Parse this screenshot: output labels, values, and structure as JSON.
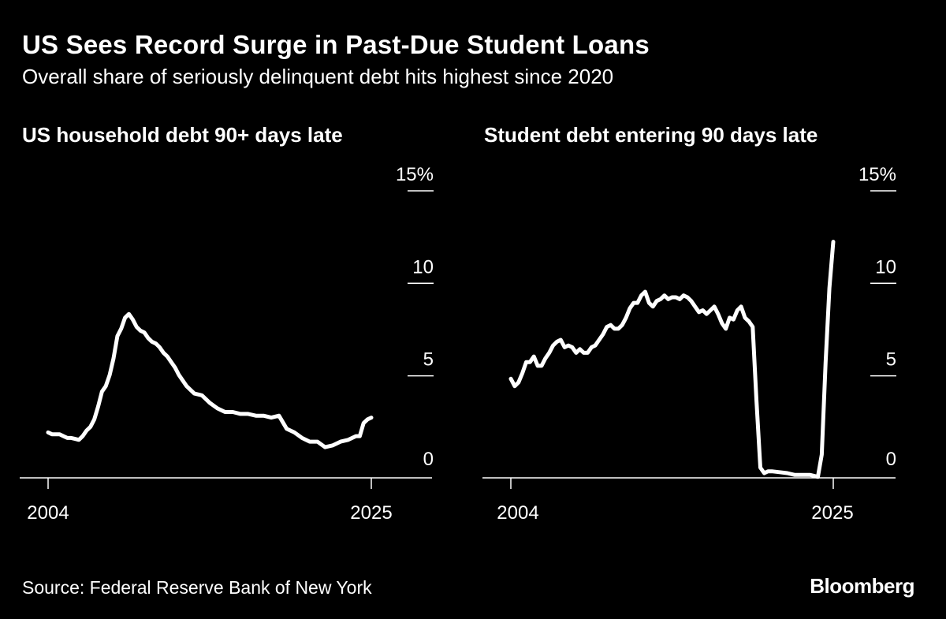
{
  "header": {
    "title": "US Sees Record Surge in Past-Due Student Loans",
    "subtitle": "Overall share of seriously delinquent debt hits highest since 2020"
  },
  "footer": {
    "source": "Source: Federal Reserve Bank of New York",
    "brand": "Bloomberg"
  },
  "colors": {
    "background": "#000000",
    "line": "#ffffff"
  },
  "chart_data": [
    {
      "type": "line",
      "title": "US household debt 90+ days late",
      "xlabel": "",
      "ylabel": "",
      "x_ticks": [
        "2004",
        "2025"
      ],
      "y_ticks": [
        "0",
        "5",
        "10",
        "15%"
      ],
      "xlim": [
        2004,
        2025.3
      ],
      "ylim": [
        0,
        15
      ],
      "grid": false,
      "series": [
        {
          "x": [
            2004.0,
            2004.25,
            2004.5,
            2004.75,
            2005.0,
            2005.25,
            2005.5,
            2005.75,
            2006.0,
            2006.25,
            2006.5,
            2006.75,
            2007.0,
            2007.25,
            2007.5,
            2007.75,
            2008.0,
            2008.25,
            2008.5,
            2008.75,
            2009.0,
            2009.25,
            2009.5,
            2009.75,
            2010.0,
            2010.25,
            2010.5,
            2010.75,
            2011.0,
            2011.25,
            2011.5,
            2011.75,
            2012.0,
            2012.25,
            2012.5,
            2012.75,
            2013.0,
            2013.5,
            2014.0,
            2014.5,
            2015.0,
            2015.5,
            2016.0,
            2016.5,
            2017.0,
            2017.5,
            2018.0,
            2018.5,
            2019.0,
            2019.5,
            2020.0,
            2020.5,
            2021.0,
            2021.5,
            2022.0,
            2022.5,
            2023.0,
            2023.5,
            2024.0,
            2024.25,
            2024.5,
            2024.75,
            2025.0
          ],
          "values": [
            2.2,
            2.1,
            2.1,
            2.1,
            2.0,
            1.9,
            1.9,
            1.85,
            1.8,
            2.0,
            2.3,
            2.5,
            2.9,
            3.6,
            4.4,
            4.7,
            5.3,
            6.2,
            7.4,
            7.8,
            8.4,
            8.6,
            8.3,
            7.9,
            7.7,
            7.6,
            7.3,
            7.1,
            7.0,
            6.8,
            6.5,
            6.3,
            6.0,
            5.7,
            5.3,
            5.0,
            4.7,
            4.3,
            4.2,
            3.8,
            3.5,
            3.3,
            3.3,
            3.2,
            3.2,
            3.1,
            3.1,
            3.0,
            3.1,
            2.4,
            2.2,
            1.9,
            1.7,
            1.7,
            1.4,
            1.5,
            1.7,
            1.8,
            2.0,
            2.0,
            2.7,
            2.9,
            3.0
          ]
        }
      ]
    },
    {
      "type": "line",
      "title": "Student debt entering 90 days late",
      "xlabel": "",
      "ylabel": "",
      "x_ticks": [
        "2004",
        "2025"
      ],
      "y_ticks": [
        "0",
        "5",
        "10",
        "15%"
      ],
      "xlim": [
        2004,
        2025.3
      ],
      "ylim": [
        0,
        15
      ],
      "grid": false,
      "series": [
        {
          "x": [
            2004.0,
            2004.25,
            2004.5,
            2004.75,
            2005.0,
            2005.25,
            2005.5,
            2005.75,
            2006.0,
            2006.25,
            2006.5,
            2006.75,
            2007.0,
            2007.25,
            2007.5,
            2007.75,
            2008.0,
            2008.25,
            2008.5,
            2008.75,
            2009.0,
            2009.25,
            2009.5,
            2009.75,
            2010.0,
            2010.25,
            2010.5,
            2010.75,
            2011.0,
            2011.25,
            2011.5,
            2011.75,
            2012.0,
            2012.25,
            2012.5,
            2012.75,
            2013.0,
            2013.25,
            2013.5,
            2013.75,
            2014.0,
            2014.25,
            2014.5,
            2014.75,
            2015.0,
            2015.25,
            2015.5,
            2015.75,
            2016.0,
            2016.25,
            2016.5,
            2016.75,
            2017.0,
            2017.25,
            2017.5,
            2017.75,
            2018.0,
            2018.25,
            2018.5,
            2018.75,
            2019.0,
            2019.25,
            2019.5,
            2019.75,
            2020.0,
            2020.25,
            2020.5,
            2020.75,
            2021.0,
            2021.5,
            2022.0,
            2022.5,
            2023.0,
            2023.5,
            2024.0,
            2024.25,
            2024.5,
            2024.75,
            2025.0
          ],
          "values": [
            5.1,
            4.7,
            4.9,
            5.4,
            6.0,
            6.0,
            6.3,
            5.8,
            5.8,
            6.2,
            6.5,
            6.9,
            7.1,
            7.2,
            6.8,
            6.9,
            6.8,
            6.5,
            6.7,
            6.5,
            6.5,
            6.8,
            6.9,
            7.2,
            7.5,
            7.9,
            8.0,
            7.8,
            7.8,
            8.0,
            8.4,
            8.9,
            9.2,
            9.2,
            9.6,
            9.8,
            9.2,
            9.0,
            9.3,
            9.4,
            9.6,
            9.4,
            9.5,
            9.5,
            9.4,
            9.6,
            9.5,
            9.3,
            9.0,
            8.7,
            8.8,
            8.6,
            8.8,
            9.0,
            8.6,
            8.1,
            7.8,
            8.4,
            8.3,
            8.8,
            9.0,
            8.4,
            8.2,
            7.9,
            3.9,
            0.3,
            0.0,
            0.1,
            0.1,
            0.05,
            0.0,
            -0.1,
            -0.1,
            -0.1,
            -0.2,
            1.0,
            6.0,
            10.0,
            12.5
          ]
        }
      ]
    }
  ]
}
